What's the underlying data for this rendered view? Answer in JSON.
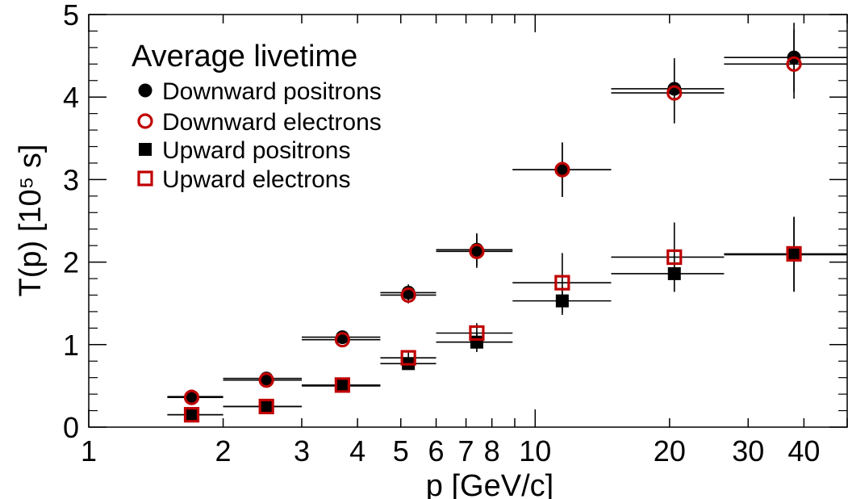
{
  "chart_data": {
    "type": "scatter",
    "title": "Average livetime",
    "xlabel": "p  [GeV/c]",
    "ylabel": "T(p)  [10⁵ s]",
    "x_scale": "log",
    "xlim": [
      1,
      50
    ],
    "ylim": [
      0,
      5
    ],
    "x_ticks": [
      1,
      2,
      3,
      4,
      5,
      6,
      7,
      8,
      10,
      20,
      30,
      40
    ],
    "y_ticks": [
      0,
      1,
      2,
      3,
      4,
      5
    ],
    "grid": false,
    "legend_position": "top-left",
    "series": [
      {
        "name": "Downward positrons",
        "marker": "filled-circle",
        "color": "#000000",
        "points": [
          {
            "x": 1.7,
            "y": 0.37,
            "xlo": 1.5,
            "xhi": 2.0,
            "yerr": 0.03
          },
          {
            "x": 2.5,
            "y": 0.59,
            "xlo": 2.0,
            "xhi": 3.0,
            "yerr": 0.03
          },
          {
            "x": 3.7,
            "y": 1.09,
            "xlo": 3.0,
            "xhi": 4.5,
            "yerr": 0.05
          },
          {
            "x": 5.2,
            "y": 1.63,
            "xlo": 4.5,
            "xhi": 6.0,
            "yerr": 0.1
          },
          {
            "x": 7.4,
            "y": 2.15,
            "xlo": 6.0,
            "xhi": 8.9,
            "yerr": 0.2
          },
          {
            "x": 11.5,
            "y": 3.12,
            "xlo": 8.9,
            "xhi": 14.8,
            "yerr": 0.33
          },
          {
            "x": 20.5,
            "y": 4.1,
            "xlo": 14.8,
            "xhi": 26.5,
            "yerr": 0.37
          },
          {
            "x": 38.0,
            "y": 4.48,
            "xlo": 26.5,
            "xhi": 50.0,
            "yerr": 0.42
          }
        ]
      },
      {
        "name": "Downward electrons",
        "marker": "open-circle",
        "color": "#c00000",
        "points": [
          {
            "x": 1.7,
            "y": 0.36,
            "xlo": 1.5,
            "xhi": 2.0,
            "yerr": 0.03
          },
          {
            "x": 2.5,
            "y": 0.57,
            "xlo": 2.0,
            "xhi": 3.0,
            "yerr": 0.03
          },
          {
            "x": 3.7,
            "y": 1.06,
            "xlo": 3.0,
            "xhi": 4.5,
            "yerr": 0.05
          },
          {
            "x": 5.2,
            "y": 1.6,
            "xlo": 4.5,
            "xhi": 6.0,
            "yerr": 0.1
          },
          {
            "x": 7.4,
            "y": 2.13,
            "xlo": 6.0,
            "xhi": 8.9,
            "yerr": 0.2
          },
          {
            "x": 11.5,
            "y": 3.12,
            "xlo": 8.9,
            "xhi": 14.8,
            "yerr": 0.33
          },
          {
            "x": 20.5,
            "y": 4.05,
            "xlo": 14.8,
            "xhi": 26.5,
            "yerr": 0.37
          },
          {
            "x": 38.0,
            "y": 4.4,
            "xlo": 26.5,
            "xhi": 50.0,
            "yerr": 0.42
          }
        ]
      },
      {
        "name": "Upward positrons",
        "marker": "filled-square",
        "color": "#000000",
        "points": [
          {
            "x": 1.7,
            "y": 0.15,
            "xlo": 1.5,
            "xhi": 2.0,
            "yerr": 0.02
          },
          {
            "x": 2.5,
            "y": 0.25,
            "xlo": 2.0,
            "xhi": 3.0,
            "yerr": 0.02
          },
          {
            "x": 3.7,
            "y": 0.5,
            "xlo": 3.0,
            "xhi": 4.5,
            "yerr": 0.04
          },
          {
            "x": 5.2,
            "y": 0.77,
            "xlo": 4.5,
            "xhi": 6.0,
            "yerr": 0.07
          },
          {
            "x": 7.4,
            "y": 1.03,
            "xlo": 6.0,
            "xhi": 8.9,
            "yerr": 0.12
          },
          {
            "x": 11.5,
            "y": 1.53,
            "xlo": 8.9,
            "xhi": 14.8,
            "yerr": 0.17
          },
          {
            "x": 20.5,
            "y": 1.86,
            "xlo": 14.8,
            "xhi": 26.5,
            "yerr": 0.22
          },
          {
            "x": 38.0,
            "y": 2.09,
            "xlo": 26.5,
            "xhi": 50.0,
            "yerr": 0.45
          }
        ]
      },
      {
        "name": "Upward electrons",
        "marker": "open-square",
        "color": "#c00000",
        "points": [
          {
            "x": 1.7,
            "y": 0.15,
            "xlo": 1.5,
            "xhi": 2.0,
            "yerr": 0.02
          },
          {
            "x": 2.5,
            "y": 0.25,
            "xlo": 2.0,
            "xhi": 3.0,
            "yerr": 0.02
          },
          {
            "x": 3.7,
            "y": 0.51,
            "xlo": 3.0,
            "xhi": 4.5,
            "yerr": 0.04
          },
          {
            "x": 5.2,
            "y": 0.84,
            "xlo": 4.5,
            "xhi": 6.0,
            "yerr": 0.07
          },
          {
            "x": 7.4,
            "y": 1.14,
            "xlo": 6.0,
            "xhi": 8.9,
            "yerr": 0.12
          },
          {
            "x": 11.5,
            "y": 1.75,
            "xlo": 8.9,
            "xhi": 14.8,
            "yerr": 0.36
          },
          {
            "x": 20.5,
            "y": 2.06,
            "xlo": 14.8,
            "xhi": 26.5,
            "yerr": 0.42
          },
          {
            "x": 38.0,
            "y": 2.1,
            "xlo": 26.5,
            "xhi": 50.0,
            "yerr": 0.45
          }
        ]
      }
    ]
  }
}
